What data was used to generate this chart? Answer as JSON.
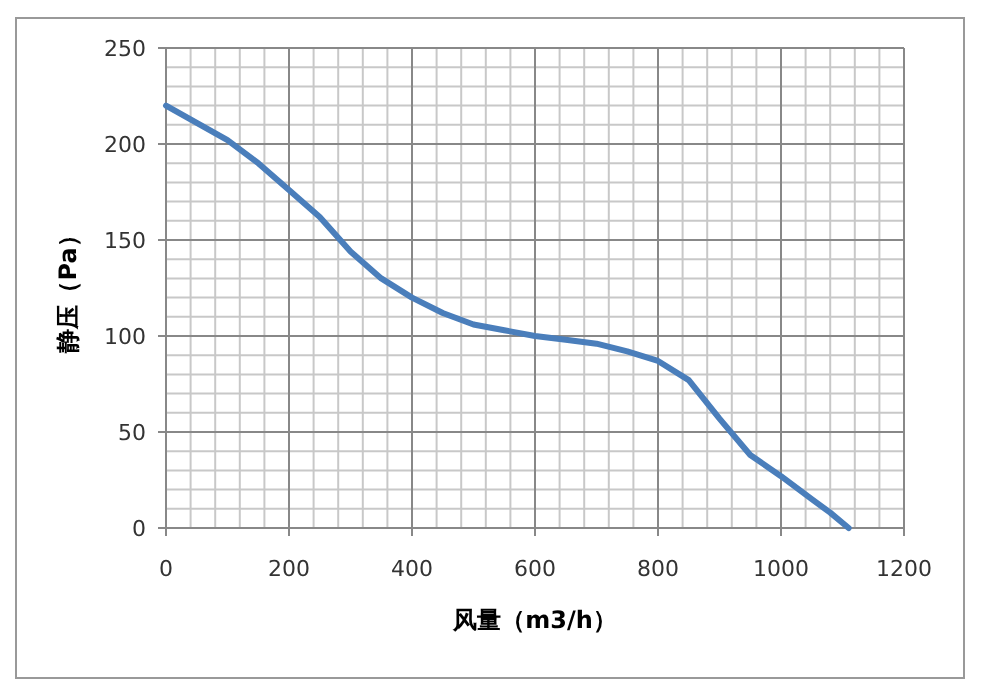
{
  "chart_data": {
    "type": "line",
    "xlabel": "风量（m3/h）",
    "ylabel": "静压（Pa）",
    "x": [
      0,
      50,
      100,
      150,
      200,
      250,
      300,
      350,
      400,
      450,
      500,
      550,
      600,
      650,
      700,
      750,
      800,
      850,
      900,
      950,
      1000,
      1050,
      1080,
      1110
    ],
    "series": [
      {
        "color": "#4a7ebb",
        "values": [
          220,
          211,
          202,
          190,
          176,
          162,
          144,
          130,
          120,
          112,
          106,
          103,
          100,
          98,
          96,
          92,
          87,
          77,
          57,
          38,
          27,
          15,
          8,
          0
        ]
      }
    ],
    "xlim": [
      0,
      1200
    ],
    "ylim": [
      0,
      250
    ],
    "xticks": [
      0,
      200,
      400,
      600,
      800,
      1000,
      1200
    ],
    "yticks": [
      0,
      50,
      100,
      150,
      200,
      250
    ],
    "grid": true,
    "marker": "none",
    "line_style": "solid"
  }
}
